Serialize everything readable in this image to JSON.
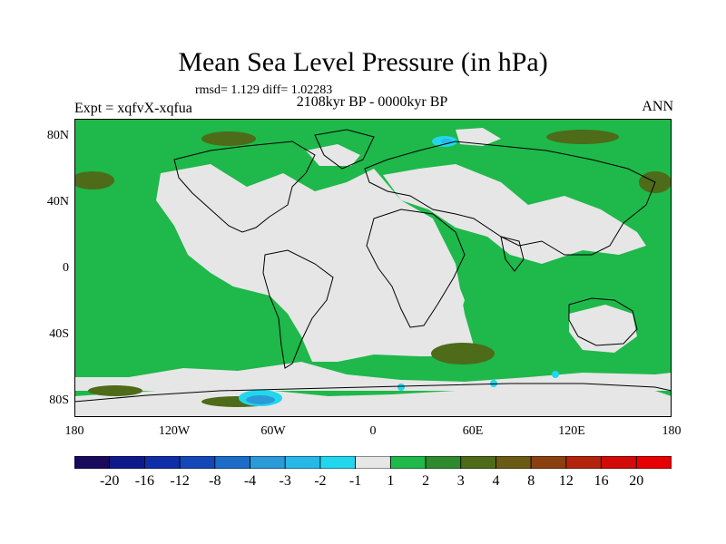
{
  "title": "Mean Sea Level Pressure (in hPa)",
  "stats": "rmsd= 1.129 diff= 1.02283",
  "expt": "Expt = xqfvX-xqfua",
  "period": "2108kyr BP - 0000kyr BP",
  "season": "ANN",
  "lat_labels": [
    "80N",
    "40N",
    "0",
    "40S",
    "80S"
  ],
  "lon_labels": [
    "180",
    "120W",
    "60W",
    "0",
    "60E",
    "120E",
    "180"
  ],
  "colorbar": {
    "labels": [
      "-20",
      "-16",
      "-12",
      "-8",
      "-4",
      "-3",
      "-2",
      "-1",
      "1",
      "2",
      "3",
      "4",
      "8",
      "12",
      "16",
      "20"
    ],
    "colors": [
      "#1a0a5c",
      "#0d1a8c",
      "#0f2ea8",
      "#1448b8",
      "#1b6dc8",
      "#2a9ad8",
      "#27b8e8",
      "#22d6ee",
      "#e6e6e6",
      "#1fb84a",
      "#2e8a2e",
      "#4d6b18",
      "#6b5a14",
      "#8a4010",
      "#b2240c",
      "#d20a0a",
      "#e60000"
    ]
  },
  "colors": {
    "ocean_positive": "#1fb84a",
    "neutral": "#e6e6e6",
    "strong_positive": "#4d6b18",
    "negative_light": "#22d6ee",
    "negative": "#1b6dc8",
    "coastline": "#000000"
  }
}
